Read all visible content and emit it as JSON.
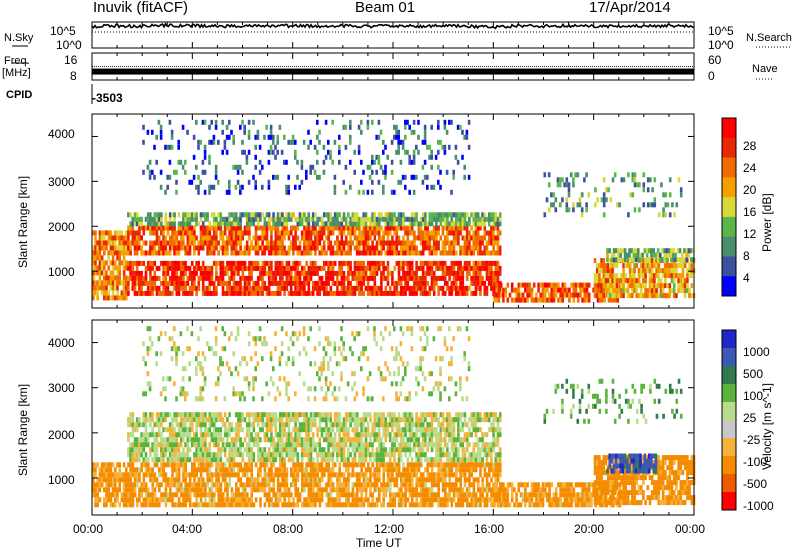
{
  "header": {
    "station": "Inuvik (fitACF)",
    "beam": "Beam 01",
    "date": "17/Apr/2014"
  },
  "side_labels": {
    "nsky": "N.Sky",
    "freq": "Freq.",
    "freq_unit": "[MHz]",
    "cpid": "CPID",
    "nsearch": "N.Search",
    "nave": "Nave"
  },
  "cpid_value": "-3503",
  "colors": {
    "power_scale": [
      "#0000ff",
      "#3c50a0",
      "#4a8e6e",
      "#5ab54a",
      "#d9d83a",
      "#f5a000",
      "#f06c00",
      "#e82800",
      "#ff0000"
    ],
    "velocity_scale": [
      "#ff0000",
      "#ee5a00",
      "#f58c00",
      "#f5b23a",
      "#c8c8c8",
      "#b8dc8c",
      "#5ab43c",
      "#327850",
      "#3c5ab4",
      "#1e28c8"
    ]
  },
  "chart_data": [
    {
      "type": "line",
      "name": "noise-panel",
      "title": "",
      "xlabel": "",
      "ylabel": "N.Sky",
      "y2label": "N.Search",
      "y_ticks": [
        "10^5",
        "10^0"
      ],
      "y2_ticks": [
        "10^5",
        "10^0"
      ],
      "xlim": [
        0,
        24
      ],
      "series": [
        {
          "values": [
            4.6,
            4.7,
            4.6,
            4.8,
            4.7,
            4.6,
            4.7,
            4.6,
            4.7,
            4.6,
            4.7,
            4.6,
            4.7,
            4.6,
            4.7,
            4.6,
            4.4,
            4.7,
            4.6,
            4.7,
            4.6,
            4.7,
            4.6,
            4.7,
            4.6
          ]
        }
      ]
    },
    {
      "type": "line",
      "name": "frequency-panel",
      "title": "",
      "xlabel": "",
      "ylabel": "[MHz]",
      "y2label": "Nave",
      "y_ticks": [
        "16",
        "8"
      ],
      "y2_ticks": [
        "60",
        "0"
      ],
      "xlim": [
        0,
        24
      ],
      "series": [
        {
          "values": [
            10.5,
            10.5,
            10.5,
            10.5,
            10.5,
            10.5,
            10.5,
            10.5,
            10.5,
            10.5,
            10.5,
            10.5,
            10.5,
            10.5,
            10.5,
            10.5,
            10.5,
            10.5,
            10.5,
            10.5,
            10.5,
            10.5,
            10.5,
            10.5,
            10.5
          ]
        }
      ]
    },
    {
      "type": "heatmap",
      "name": "power-panel",
      "title": "",
      "xlabel": "",
      "ylabel": "Slant Range [km]",
      "colorbar_label": "Power [dB]",
      "colorbar_ticks": [
        "28",
        "24",
        "20",
        "16",
        "12",
        "8",
        "4"
      ],
      "xlim": [
        0,
        24
      ],
      "ylim": [
        180,
        4500
      ],
      "y_ticks": [
        "4000",
        "3000",
        "2000",
        "1000"
      ],
      "bands": [
        {
          "t0": 0,
          "t1": 1.4,
          "low": 350,
          "high": 1800,
          "level": 22
        },
        {
          "t0": 1.4,
          "t1": 16.3,
          "low": 450,
          "high": 1200,
          "level": 27
        },
        {
          "t0": 1.4,
          "t1": 16.3,
          "low": 1350,
          "high": 2000,
          "level": 24
        },
        {
          "t0": 1.4,
          "t1": 16.3,
          "low": 2000,
          "high": 2300,
          "level": 12
        },
        {
          "t0": 16.0,
          "t1": 21.0,
          "low": 300,
          "high": 700,
          "level": 24
        },
        {
          "t0": 20.0,
          "t1": 24.0,
          "low": 400,
          "high": 1200,
          "level": 20
        },
        {
          "t0": 20.5,
          "t1": 24.0,
          "low": 1200,
          "high": 1500,
          "level": 12
        },
        {
          "t0": 2.0,
          "t1": 15.0,
          "low": 2700,
          "high": 4300,
          "level": 6
        },
        {
          "t0": 18.0,
          "t1": 23.5,
          "low": 2200,
          "high": 3100,
          "level": 10
        }
      ]
    },
    {
      "type": "heatmap",
      "name": "velocity-panel",
      "title": "",
      "xlabel": "Time UT",
      "ylabel": "Slant Range [km]",
      "colorbar_label": "Velocity [m s^-1]",
      "colorbar_ticks": [
        "1000",
        "500",
        "100",
        "25",
        "-25",
        "-100",
        "-500",
        "-1000"
      ],
      "xlim": [
        0,
        24
      ],
      "ylim": [
        180,
        4500
      ],
      "y_ticks": [
        "4000",
        "3000",
        "2000",
        "1000"
      ],
      "x_ticks": [
        "00:00",
        "04:00",
        "08:00",
        "12:00",
        "16:00",
        "20:00",
        "00:00"
      ],
      "bands": [
        {
          "t0": 0,
          "t1": 16.3,
          "low": 350,
          "high": 1250,
          "vel": -150
        },
        {
          "t0": 1.4,
          "t1": 16.3,
          "low": 1350,
          "high": 2400,
          "vel": 0
        },
        {
          "t0": 16.0,
          "t1": 21.0,
          "low": 350,
          "high": 800,
          "vel": -150
        },
        {
          "t0": 20.0,
          "t1": 24.0,
          "low": 400,
          "high": 1400,
          "vel": -200
        },
        {
          "t0": 20.5,
          "t1": 22.5,
          "low": 1100,
          "high": 1500,
          "vel": 700
        },
        {
          "t0": 2.0,
          "t1": 15.0,
          "low": 2700,
          "high": 4300,
          "vel": 0
        },
        {
          "t0": 18.0,
          "t1": 23.5,
          "low": 2200,
          "high": 3100,
          "vel": 60
        }
      ]
    }
  ]
}
